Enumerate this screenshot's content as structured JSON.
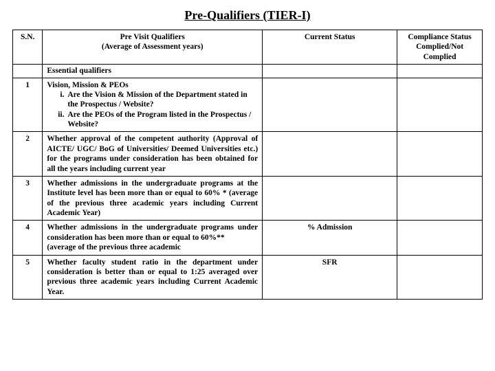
{
  "title": "Pre-Qualifiers (TIER-I)",
  "headers": {
    "sn": "S.N.",
    "qualifier": "Pre Visit Qualifiers",
    "qualifier_sub": "(Average of Assessment years)",
    "status": "Current Status",
    "compliance": "Compliance Status Complied/Not Complied"
  },
  "subhead": "Essential qualifiers",
  "rows": [
    {
      "sn": "1",
      "lead": "Vision, Mission & PEOs",
      "items": [
        "Are the Vision & Mission of the Department stated in the Prospectus / Website?",
        "Are the PEOs of the Program listed in the Prospectus / Website?"
      ],
      "status": ""
    },
    {
      "sn": "2",
      "text": "Whether approval of the competent authority (Approval of AICTE/ UGC/ BoG of Universities/ Deemed Universities etc.) for the programs under consideration has been obtained for all the years including current year",
      "status": ""
    },
    {
      "sn": "3",
      "text": "Whether admissions in the undergraduate programs at the Institute level has been more than or equal to 60% * (average of the previous three academic years including Current Academic Year)",
      "status": ""
    },
    {
      "sn": "4",
      "text": "Whether admissions in the undergraduate programs under consideration has been more than or equal to 60%**\n(average of the previous three academic",
      "status": "% Admission"
    },
    {
      "sn": "5",
      "text": "Whether faculty student ratio in the department under consideration is better than or equal to 1:25 averaged over previous three academic years including Current Academic Year.",
      "status": "SFR"
    }
  ]
}
